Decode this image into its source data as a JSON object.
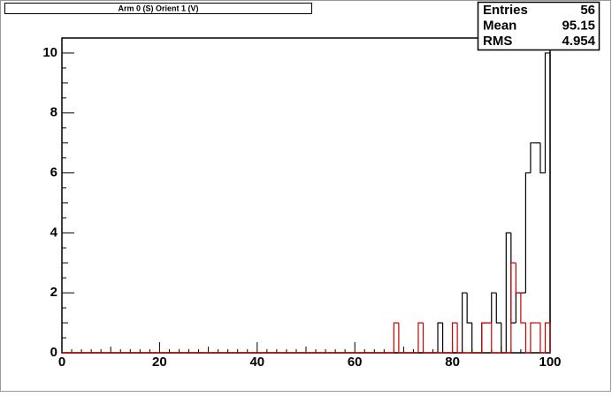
{
  "chart_data": {
    "type": "histogram",
    "title": "Arm 0 (S) Orient 1 (V)",
    "stats": {
      "labels": [
        "Entries",
        "Mean",
        "RMS"
      ],
      "values": [
        56,
        95.15,
        4.954
      ]
    },
    "bins": [
      0,
      1,
      2,
      3,
      4,
      5,
      6,
      7,
      8,
      9,
      10,
      11,
      12,
      13,
      14,
      15,
      16,
      17,
      18,
      19,
      20,
      21,
      22,
      23,
      24,
      25,
      26,
      27,
      28,
      29,
      30,
      31,
      32,
      33,
      34,
      35,
      36,
      37,
      38,
      39,
      40,
      41,
      42,
      43,
      44,
      45,
      46,
      47,
      48,
      49,
      50,
      51,
      52,
      53,
      54,
      55,
      56,
      57,
      58,
      59,
      60,
      61,
      62,
      63,
      64,
      65,
      66,
      67,
      68,
      69,
      70,
      71,
      72,
      73,
      74,
      75,
      76,
      77,
      78,
      79,
      80,
      81,
      82,
      83,
      84,
      85,
      86,
      87,
      88,
      89,
      90,
      91,
      92,
      93,
      94,
      95,
      96,
      97,
      98,
      99,
      100
    ],
    "series": [
      {
        "color": "#000000",
        "values": [
          0,
          0,
          0,
          0,
          0,
          0,
          0,
          0,
          0,
          0,
          0,
          0,
          0,
          0,
          0,
          0,
          0,
          0,
          0,
          0,
          0,
          0,
          0,
          0,
          0,
          0,
          0,
          0,
          0,
          0,
          0,
          0,
          0,
          0,
          0,
          0,
          0,
          0,
          0,
          0,
          0,
          0,
          0,
          0,
          0,
          0,
          0,
          0,
          0,
          0,
          0,
          0,
          0,
          0,
          0,
          0,
          0,
          0,
          0,
          0,
          0,
          0,
          0,
          0,
          0,
          0,
          0,
          0,
          0,
          0,
          0,
          0,
          0,
          0,
          0,
          0,
          0,
          1,
          0,
          0,
          0,
          0,
          2,
          1,
          0,
          0,
          1,
          1,
          2,
          1,
          0,
          4,
          1,
          2,
          2,
          6,
          7,
          7,
          6,
          10
        ]
      },
      {
        "color": "#cc0000",
        "values": [
          0,
          0,
          0,
          0,
          0,
          0,
          0,
          0,
          0,
          0,
          0,
          0,
          0,
          0,
          0,
          0,
          0,
          0,
          0,
          0,
          0,
          0,
          0,
          0,
          0,
          0,
          0,
          0,
          0,
          0,
          0,
          0,
          0,
          0,
          0,
          0,
          0,
          0,
          0,
          0,
          0,
          0,
          0,
          0,
          0,
          0,
          0,
          0,
          0,
          0,
          0,
          0,
          0,
          0,
          0,
          0,
          0,
          0,
          0,
          0,
          0,
          0,
          0,
          0,
          0,
          0,
          0,
          0,
          1,
          0,
          0,
          0,
          0,
          1,
          0,
          0,
          0,
          0,
          0,
          0,
          1,
          0,
          0,
          0,
          0,
          0,
          1,
          1,
          0,
          0,
          0,
          0,
          3,
          2,
          1,
          0,
          1,
          1,
          0,
          1
        ]
      }
    ],
    "xlim": [
      0,
      100
    ],
    "xticks": [
      0,
      20,
      40,
      60,
      80,
      100
    ],
    "ylim": [
      0,
      10.5
    ],
    "yticks": [
      0,
      2,
      4,
      6,
      8,
      10
    ]
  }
}
